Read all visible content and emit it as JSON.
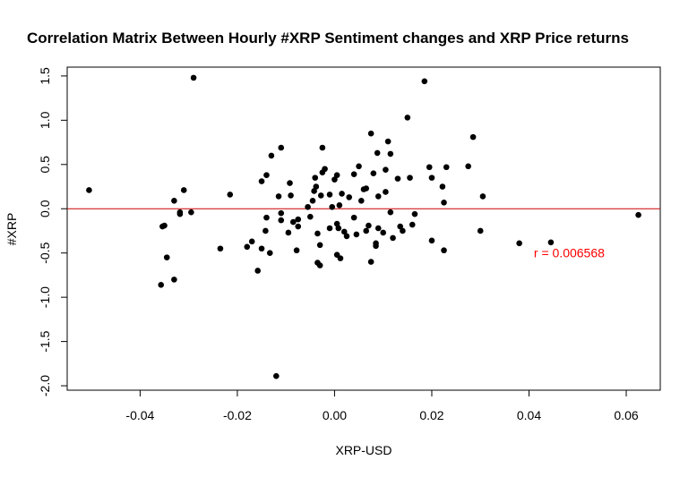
{
  "chart_data": {
    "type": "scatter",
    "title": "Correlation Matrix Between Hourly #XRP Sentiment changes and XRP Price returns",
    "xlabel": "XRP-USD",
    "ylabel": "#XRP",
    "xlim": [
      -0.055,
      0.067
    ],
    "ylim": [
      -2.05,
      1.6
    ],
    "xticks": [
      "-0.04",
      "-0.02",
      "0.00",
      "0.02",
      "0.04",
      "0.06"
    ],
    "yticks": [
      "-2.0",
      "-1.5",
      "-1.0",
      "-0.5",
      "0.0",
      "0.5",
      "1.0",
      "1.5"
    ],
    "hline": {
      "y": 0.0,
      "color": "#cc0000"
    },
    "annotation": {
      "text": "r = 0.006568",
      "x": 0.041,
      "y": -0.5,
      "color": "#ff0000"
    },
    "point_color": "#000000",
    "grid": false,
    "points": [
      [
        -0.0505,
        0.21
      ],
      [
        -0.0357,
        -0.86
      ],
      [
        -0.0354,
        -0.2
      ],
      [
        -0.035,
        -0.19
      ],
      [
        -0.0345,
        -0.55
      ],
      [
        -0.033,
        -0.8
      ],
      [
        -0.033,
        0.09
      ],
      [
        -0.0318,
        -0.06
      ],
      [
        -0.0318,
        -0.04
      ],
      [
        -0.031,
        0.21
      ],
      [
        -0.0295,
        -0.04
      ],
      [
        -0.029,
        1.48
      ],
      [
        -0.0235,
        -0.45
      ],
      [
        -0.0215,
        0.16
      ],
      [
        -0.018,
        -0.43
      ],
      [
        -0.017,
        -0.37
      ],
      [
        -0.0158,
        -0.7
      ],
      [
        -0.015,
        0.31
      ],
      [
        -0.015,
        -0.45
      ],
      [
        -0.0142,
        -0.25
      ],
      [
        -0.014,
        0.38
      ],
      [
        -0.014,
        -0.1
      ],
      [
        -0.0133,
        -0.5
      ],
      [
        -0.013,
        0.6
      ],
      [
        -0.012,
        -1.89
      ],
      [
        -0.0115,
        0.14
      ],
      [
        -0.011,
        0.69
      ],
      [
        -0.011,
        -0.05
      ],
      [
        -0.011,
        -0.13
      ],
      [
        -0.0095,
        -0.27
      ],
      [
        -0.0092,
        0.29
      ],
      [
        -0.009,
        0.15
      ],
      [
        -0.0085,
        -0.15
      ],
      [
        -0.0078,
        -0.47
      ],
      [
        -0.0075,
        -0.2
      ],
      [
        -0.0075,
        -0.12
      ],
      [
        -0.0055,
        0.02
      ],
      [
        -0.005,
        -0.09
      ],
      [
        -0.0045,
        0.09
      ],
      [
        -0.0042,
        0.2
      ],
      [
        -0.004,
        0.35
      ],
      [
        -0.0038,
        0.25
      ],
      [
        -0.0035,
        -0.28
      ],
      [
        -0.0035,
        -0.61
      ],
      [
        -0.003,
        -0.64
      ],
      [
        -0.003,
        -0.41
      ],
      [
        -0.0028,
        0.15
      ],
      [
        -0.0025,
        0.69
      ],
      [
        -0.0025,
        0.41
      ],
      [
        -0.002,
        0.45
      ],
      [
        -0.001,
        -0.22
      ],
      [
        -0.001,
        0.16
      ],
      [
        -0.0005,
        0.02
      ],
      [
        0.0,
        0.33
      ],
      [
        0.0005,
        0.38
      ],
      [
        0.0005,
        -0.17
      ],
      [
        0.0005,
        -0.52
      ],
      [
        0.0008,
        -0.22
      ],
      [
        0.001,
        0.04
      ],
      [
        0.0012,
        -0.56
      ],
      [
        0.0015,
        0.17
      ],
      [
        0.002,
        -0.26
      ],
      [
        0.0025,
        -0.31
      ],
      [
        0.003,
        0.13
      ],
      [
        0.004,
        0.39
      ],
      [
        0.004,
        -0.1
      ],
      [
        0.0045,
        -0.29
      ],
      [
        0.005,
        0.48
      ],
      [
        0.0055,
        0.09
      ],
      [
        0.006,
        0.22
      ],
      [
        0.0065,
        0.23
      ],
      [
        0.0065,
        -0.25
      ],
      [
        0.007,
        -0.19
      ],
      [
        0.0075,
        -0.6
      ],
      [
        0.0075,
        0.85
      ],
      [
        0.008,
        0.4
      ],
      [
        0.0085,
        -0.39
      ],
      [
        0.0085,
        -0.42
      ],
      [
        0.0088,
        0.63
      ],
      [
        0.009,
        0.14
      ],
      [
        0.009,
        -0.22
      ],
      [
        0.01,
        -0.27
      ],
      [
        0.0105,
        0.44
      ],
      [
        0.0105,
        0.19
      ],
      [
        0.011,
        0.76
      ],
      [
        0.0115,
        0.62
      ],
      [
        0.0115,
        -0.04
      ],
      [
        0.012,
        -0.33
      ],
      [
        0.013,
        0.34
      ],
      [
        0.0135,
        -0.2
      ],
      [
        0.014,
        -0.25
      ],
      [
        0.015,
        1.03
      ],
      [
        0.0155,
        0.35
      ],
      [
        0.016,
        -0.18
      ],
      [
        0.0165,
        -0.06
      ],
      [
        0.0185,
        1.44
      ],
      [
        0.0195,
        0.47
      ],
      [
        0.02,
        -0.36
      ],
      [
        0.02,
        0.35
      ],
      [
        0.0222,
        0.25
      ],
      [
        0.0225,
        0.07
      ],
      [
        0.0225,
        -0.47
      ],
      [
        0.023,
        0.47
      ],
      [
        0.0275,
        0.48
      ],
      [
        0.0285,
        0.81
      ],
      [
        0.03,
        -0.25
      ],
      [
        0.0305,
        0.14
      ],
      [
        0.038,
        -0.39
      ],
      [
        0.0445,
        -0.38
      ],
      [
        0.0625,
        -0.07
      ]
    ]
  }
}
